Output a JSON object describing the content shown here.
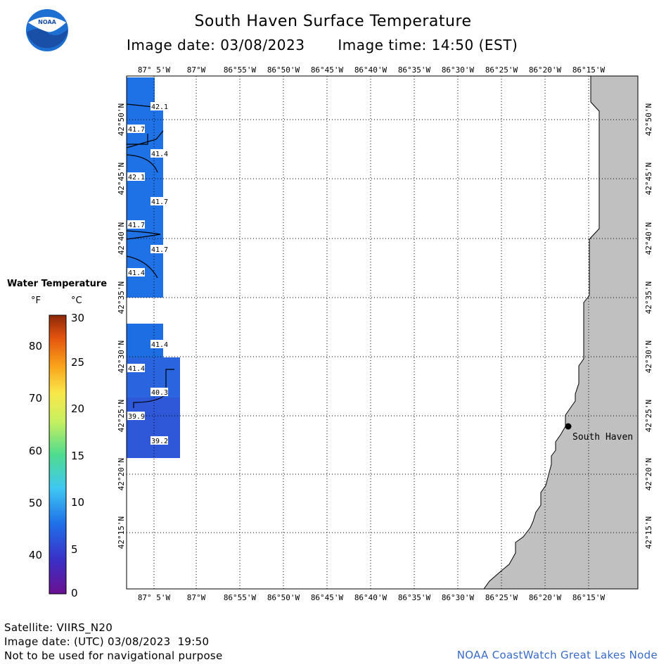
{
  "header": {
    "title": "South Haven Surface Temperature",
    "image_date": "Image date: 03/08/2023",
    "image_time": "Image time: 14:50 (EST)"
  },
  "logo": {
    "text": "NOAA"
  },
  "map": {
    "lon_labels": [
      "87° 5'W",
      "87°W",
      "86°55'W",
      "86°50'W",
      "86°45'W",
      "86°40'W",
      "86°35'W",
      "86°30'W",
      "86°25'W",
      "86°20'W",
      "86°15'W"
    ],
    "lat_labels": [
      "42°50'N",
      "42°45'N",
      "42°40'N",
      "42°35'N",
      "42°30'N",
      "42°25'N",
      "42°20'N",
      "42°15'N"
    ],
    "city": "South Haven",
    "land_color": "#c0c0c0",
    "contour_labels": [
      "42.1",
      "41.7",
      "41.4",
      "42.1",
      "41.7",
      "41.7",
      "41.7",
      "41.4",
      "41.4",
      "41.4",
      "40.3",
      "39.9",
      "39.2"
    ]
  },
  "legend": {
    "title": "Water Temperature",
    "unit_f": "°F",
    "unit_c": "°C",
    "f_ticks": [
      "80",
      "70",
      "60",
      "50",
      "40"
    ],
    "c_ticks": [
      "30",
      "25",
      "20",
      "15",
      "10",
      "5",
      "0"
    ]
  },
  "footer": {
    "satellite": "Satellite: VIIRS_N20",
    "utc_date": "Image date: (UTC) 03/08/2023  19:50",
    "disclaimer": "Not to be used for navigational purpose",
    "credit": "NOAA CoastWatch Great Lakes Node"
  }
}
